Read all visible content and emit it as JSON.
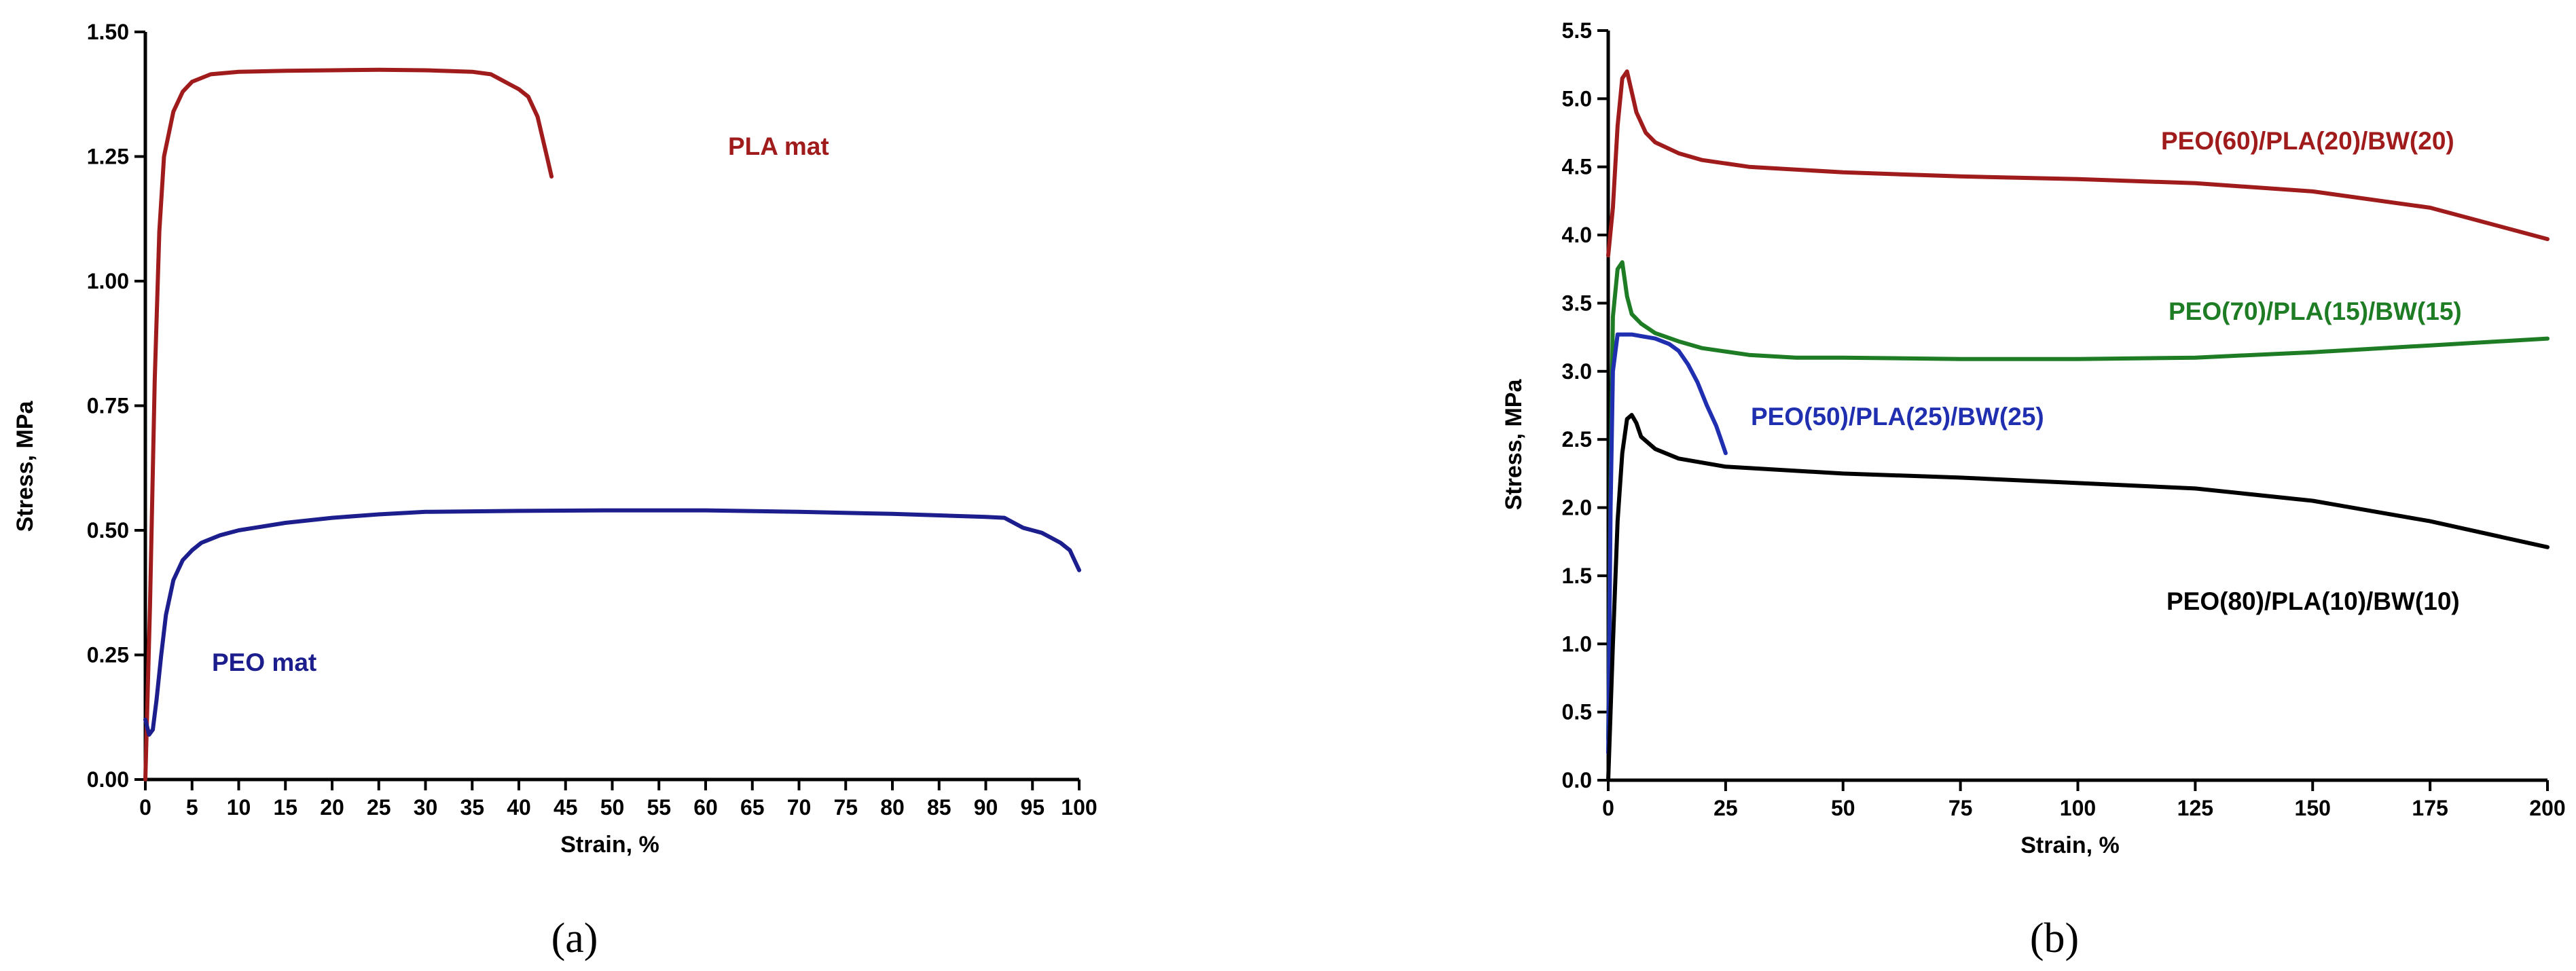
{
  "chart_data": [
    {
      "panel": "a",
      "type": "line",
      "caption": "(a)",
      "xlabel": "Strain, %",
      "ylabel": "Stress, MPa",
      "xlim": [
        0,
        100
      ],
      "ylim": [
        0,
        1.5
      ],
      "xticks": [
        0,
        5,
        10,
        15,
        20,
        25,
        30,
        35,
        40,
        45,
        50,
        55,
        60,
        65,
        70,
        75,
        80,
        85,
        90,
        95,
        100
      ],
      "yticks": [
        0.0,
        0.25,
        0.5,
        0.75,
        1.0,
        1.25,
        1.5
      ],
      "ytick_labels": [
        "0.00",
        "0.25",
        "0.50",
        "0.75",
        "1.00",
        "1.25",
        "1.50"
      ],
      "grid": false,
      "series": [
        {
          "name": "PLA mat",
          "color": "#a01c1c",
          "points": [
            [
              0,
              0
            ],
            [
              0.5,
              0.35
            ],
            [
              1,
              0.8
            ],
            [
              1.5,
              1.1
            ],
            [
              2,
              1.25
            ],
            [
              3,
              1.34
            ],
            [
              4,
              1.38
            ],
            [
              5,
              1.4
            ],
            [
              7,
              1.415
            ],
            [
              10,
              1.42
            ],
            [
              15,
              1.422
            ],
            [
              20,
              1.423
            ],
            [
              25,
              1.424
            ],
            [
              30,
              1.423
            ],
            [
              35,
              1.42
            ],
            [
              37,
              1.415
            ],
            [
              38,
              1.405
            ],
            [
              39,
              1.395
            ],
            [
              40,
              1.385
            ],
            [
              41,
              1.37
            ],
            [
              42,
              1.33
            ],
            [
              43,
              1.25
            ],
            [
              43.5,
              1.21
            ]
          ]
        },
        {
          "name": "PEO mat",
          "color": "#1b1e8c",
          "points": [
            [
              0,
              0.12
            ],
            [
              0.4,
              0.09
            ],
            [
              0.8,
              0.1
            ],
            [
              1.2,
              0.16
            ],
            [
              1.7,
              0.25
            ],
            [
              2.2,
              0.33
            ],
            [
              3,
              0.4
            ],
            [
              4,
              0.44
            ],
            [
              5,
              0.46
            ],
            [
              6,
              0.475
            ],
            [
              8,
              0.49
            ],
            [
              10,
              0.5
            ],
            [
              15,
              0.515
            ],
            [
              20,
              0.525
            ],
            [
              25,
              0.532
            ],
            [
              30,
              0.537
            ],
            [
              40,
              0.539
            ],
            [
              50,
              0.54
            ],
            [
              60,
              0.54
            ],
            [
              70,
              0.537
            ],
            [
              80,
              0.533
            ],
            [
              85,
              0.53
            ],
            [
              90,
              0.527
            ],
            [
              92,
              0.525
            ],
            [
              93,
              0.515
            ],
            [
              94,
              0.505
            ],
            [
              95,
              0.5
            ],
            [
              96,
              0.495
            ],
            [
              97,
              0.485
            ],
            [
              98,
              0.475
            ],
            [
              99,
              0.46
            ],
            [
              99.5,
              0.44
            ],
            [
              100,
              0.42
            ]
          ]
        }
      ]
    },
    {
      "panel": "b",
      "type": "line",
      "caption": "(b)",
      "xlabel": "Strain, %",
      "ylabel": "Stress, MPa",
      "xlim": [
        0,
        200
      ],
      "ylim": [
        0,
        5.5
      ],
      "xticks": [
        0,
        25,
        50,
        75,
        100,
        125,
        150,
        175,
        200
      ],
      "yticks": [
        0,
        0.5,
        1,
        1.5,
        2,
        2.5,
        3,
        3.5,
        4,
        4.5,
        5,
        5.5
      ],
      "ytick_labels": [
        "0.0",
        "0.5",
        "1.0",
        "1.5",
        "2.0",
        "2.5",
        "3.0",
        "3.5",
        "4.0",
        "4.5",
        "5.0",
        "5.5"
      ],
      "grid": false,
      "series": [
        {
          "name": "PEO(60)/PLA(20)/BW(20)",
          "color": "#a01c1c",
          "points": [
            [
              0,
              3.85
            ],
            [
              1,
              4.2
            ],
            [
              2,
              4.8
            ],
            [
              3,
              5.15
            ],
            [
              4,
              5.2
            ],
            [
              5,
              5.05
            ],
            [
              6,
              4.9
            ],
            [
              8,
              4.75
            ],
            [
              10,
              4.68
            ],
            [
              15,
              4.6
            ],
            [
              20,
              4.55
            ],
            [
              30,
              4.5
            ],
            [
              50,
              4.46
            ],
            [
              75,
              4.43
            ],
            [
              100,
              4.41
            ],
            [
              125,
              4.38
            ],
            [
              150,
              4.32
            ],
            [
              175,
              4.2
            ],
            [
              200,
              3.97
            ]
          ]
        },
        {
          "name": "PEO(70)/PLA(15)/BW(15)",
          "color": "#1e7d24",
          "points": [
            [
              0,
              0.3
            ],
            [
              0.5,
              2.2
            ],
            [
              1,
              3.4
            ],
            [
              2,
              3.75
            ],
            [
              3,
              3.8
            ],
            [
              4,
              3.55
            ],
            [
              5,
              3.42
            ],
            [
              7,
              3.35
            ],
            [
              10,
              3.28
            ],
            [
              15,
              3.22
            ],
            [
              20,
              3.17
            ],
            [
              30,
              3.12
            ],
            [
              40,
              3.1
            ],
            [
              50,
              3.1
            ],
            [
              75,
              3.09
            ],
            [
              100,
              3.09
            ],
            [
              125,
              3.1
            ],
            [
              150,
              3.14
            ],
            [
              175,
              3.19
            ],
            [
              200,
              3.24
            ]
          ]
        },
        {
          "name": "PEO(50)/PLA(25)/BW(25)",
          "color": "#1f2fb0",
          "points": [
            [
              0,
              0.2
            ],
            [
              0.5,
              2.0
            ],
            [
              1,
              3.0
            ],
            [
              2,
              3.27
            ],
            [
              5,
              3.27
            ],
            [
              10,
              3.24
            ],
            [
              13,
              3.2
            ],
            [
              15,
              3.15
            ],
            [
              17,
              3.05
            ],
            [
              19,
              2.92
            ],
            [
              21,
              2.75
            ],
            [
              23,
              2.6
            ],
            [
              24,
              2.5
            ],
            [
              25,
              2.4
            ]
          ]
        },
        {
          "name": "PEO(80)/PLA(10)/BW(10)",
          "color": "#000000",
          "points": [
            [
              0,
              0.0
            ],
            [
              1,
              1.0
            ],
            [
              2,
              1.9
            ],
            [
              3,
              2.4
            ],
            [
              4,
              2.65
            ],
            [
              5,
              2.68
            ],
            [
              6,
              2.62
            ],
            [
              7,
              2.52
            ],
            [
              10,
              2.43
            ],
            [
              15,
              2.36
            ],
            [
              25,
              2.3
            ],
            [
              50,
              2.25
            ],
            [
              75,
              2.22
            ],
            [
              100,
              2.18
            ],
            [
              125,
              2.14
            ],
            [
              150,
              2.05
            ],
            [
              175,
              1.9
            ],
            [
              200,
              1.71
            ]
          ]
        }
      ]
    }
  ]
}
